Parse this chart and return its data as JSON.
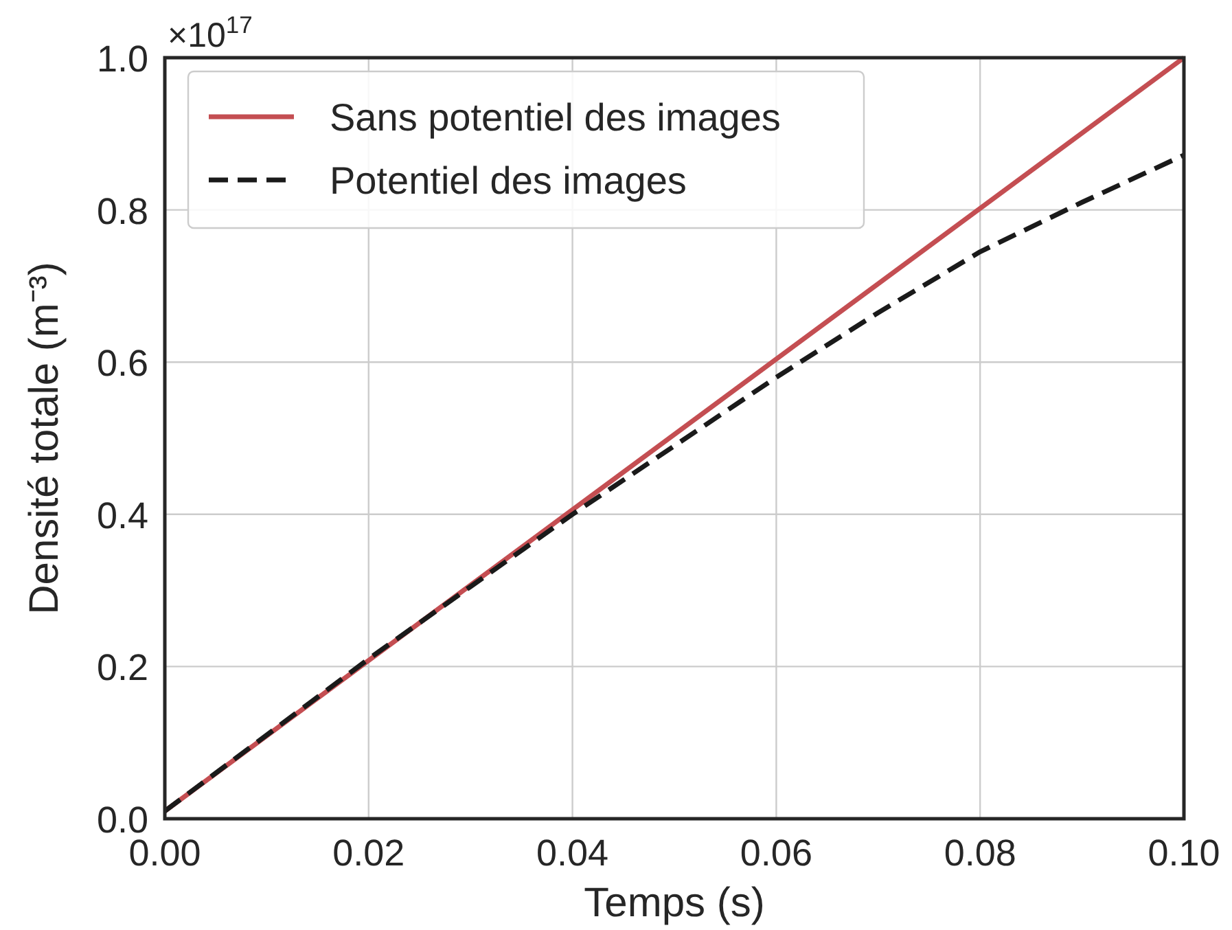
{
  "chart_data": {
    "type": "line",
    "xlabel": "Temps (s)",
    "ylabel": "Densité totale (m⁻³)",
    "annotations": [
      "×10$^{17}$"
    ],
    "series": [
      {
        "name": "Sans potentiel des images",
        "color": "#c44e52",
        "line_style": "solid",
        "x": [
          0,
          0.1
        ],
        "values": [
          0.01,
          1.0
        ]
      },
      {
        "name": "Potentiel des images",
        "color": "#1a1a1a",
        "line_style": "dashed",
        "x": [
          0,
          0.01,
          0.02,
          0.03,
          0.04,
          0.05,
          0.06,
          0.07,
          0.08,
          0.09,
          0.1
        ],
        "values": [
          0.01,
          0.11,
          0.21,
          0.305,
          0.4,
          0.49,
          0.58,
          0.665,
          0.745,
          0.81,
          0.872
        ]
      }
    ],
    "xlim": [
      0,
      0.1
    ],
    "ylim": [
      0,
      1.0
    ],
    "xticks": [
      {
        "value": 0,
        "label": "0.00"
      },
      {
        "value": 0.02,
        "label": "0.02"
      },
      {
        "value": 0.04,
        "label": "0.04"
      },
      {
        "value": 0.06,
        "label": "0.06"
      },
      {
        "value": 0.08,
        "label": "0.08"
      },
      {
        "value": 0.1,
        "label": "0.10"
      }
    ],
    "yticks": [
      {
        "value": 0,
        "label": "0.0"
      },
      {
        "value": 0.2,
        "label": "0.2"
      },
      {
        "value": 0.4,
        "label": "0.4"
      },
      {
        "value": 0.6,
        "label": "0.6"
      },
      {
        "value": 0.8,
        "label": "0.8"
      },
      {
        "value": 1.0,
        "label": "1.0"
      }
    ],
    "grid": true,
    "legend": "top left"
  }
}
